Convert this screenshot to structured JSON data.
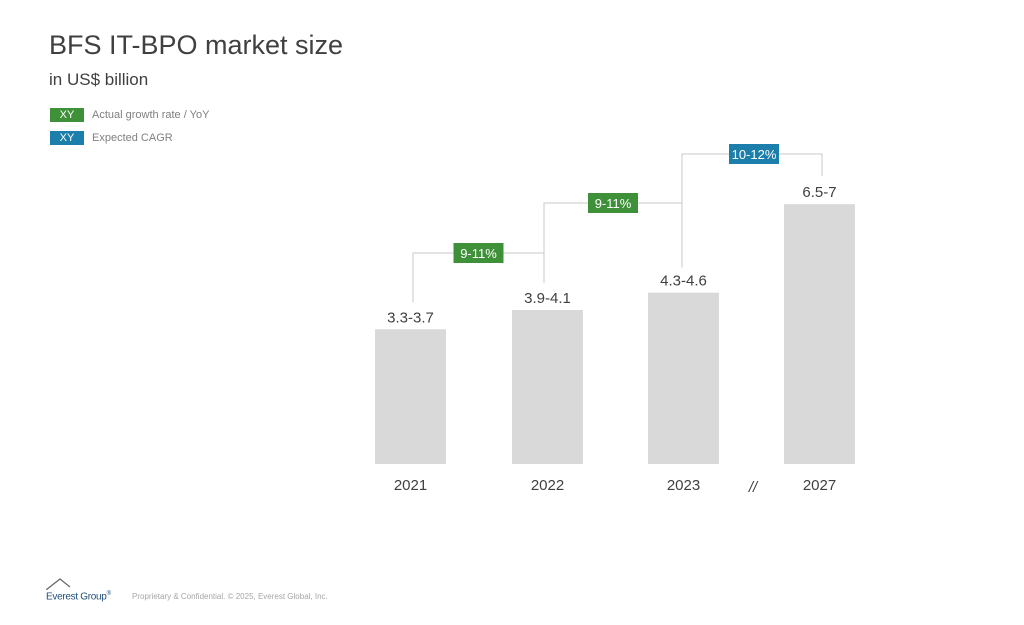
{
  "header": {
    "title": "BFS IT-BPO market size",
    "subtitle": "in US$ billion"
  },
  "legend": [
    {
      "swatch_text": "XY",
      "label": "Actual growth rate / YoY",
      "color": "#3f9139"
    },
    {
      "swatch_text": "XY",
      "label": "Expected CAGR",
      "color": "#1b7eab"
    }
  ],
  "colors": {
    "bar": "#d9d9d9",
    "connector": "#c8c8c8",
    "text": "#404040",
    "actual_growth": "#3f9139",
    "expected_cagr": "#1b7eab"
  },
  "chart_data": {
    "type": "bar",
    "title": "BFS IT-BPO market size",
    "subtitle": "in US$ billion",
    "xlabel": "",
    "ylabel": "",
    "categories": [
      "2021",
      "2022",
      "2023",
      "2027"
    ],
    "values": [
      3.5,
      4.0,
      4.45,
      6.75
    ],
    "value_labels": [
      "3.3-3.7",
      "3.9-4.1",
      "4.3-4.6",
      "6.5-7"
    ],
    "ranges": [
      [
        3.3,
        3.7
      ],
      [
        3.9,
        4.1
      ],
      [
        4.3,
        4.6
      ],
      [
        6.5,
        7.0
      ]
    ],
    "axis_break": {
      "between": [
        "2023",
        "2027"
      ],
      "symbol": "//"
    },
    "growth_annotations": [
      {
        "from": "2021",
        "to": "2022",
        "label": "9-11%",
        "type": "Actual growth rate / YoY"
      },
      {
        "from": "2022",
        "to": "2023",
        "label": "9-11%",
        "type": "Actual growth rate / YoY"
      },
      {
        "from": "2023",
        "to": "2027",
        "label": "10-12%",
        "type": "Expected CAGR"
      }
    ],
    "grid": false,
    "legend_position": "top-left"
  },
  "footer": {
    "logo_text": "Everest Group",
    "logo_mark": "®",
    "text": "Proprietary & Confidential. © 2025, Everest Global, Inc."
  }
}
